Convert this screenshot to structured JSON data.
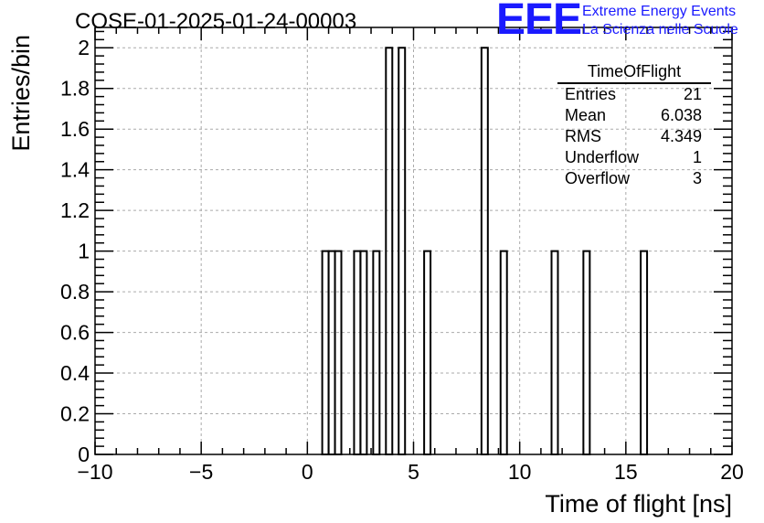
{
  "title": "COSE-01-2025-01-24-00003",
  "logo": {
    "mark": "EEE",
    "line1": "Extreme Energy Events",
    "line2": "La Scienza nelle Scuole"
  },
  "stats_box": {
    "name": "TimeOfFlight",
    "rows": [
      {
        "key": "Entries",
        "value": "21"
      },
      {
        "key": "Mean",
        "value": "6.038"
      },
      {
        "key": "RMS",
        "value": "4.349"
      },
      {
        "key": "Underflow",
        "value": "1"
      },
      {
        "key": "Overflow",
        "value": "3"
      }
    ]
  },
  "colors": {
    "line": "#000000",
    "grid": "#aaaaaa",
    "logo": "#1a1aff"
  },
  "chart_data": {
    "type": "bar",
    "histogram": true,
    "xlabel": "Time of flight [ns]",
    "ylabel": "Entries/bin",
    "xlim": [
      -10,
      20
    ],
    "ylim": [
      0,
      2.1
    ],
    "x_ticks": [
      -10,
      -5,
      0,
      5,
      10,
      15,
      20
    ],
    "x_tick_labels": [
      "−10",
      "−5",
      "0",
      "5",
      "10",
      "15",
      "20"
    ],
    "y_ticks": [
      0,
      0.2,
      0.4,
      0.6,
      0.8,
      1,
      1.2,
      1.4,
      1.6,
      1.8,
      2
    ],
    "y_tick_labels": [
      "0",
      "0.2",
      "0.4",
      "0.6",
      "0.8",
      "1",
      "1.2",
      "1.4",
      "1.6",
      "1.8",
      "2"
    ],
    "grid": true,
    "bin_width": 0.3,
    "bins": [
      {
        "x": 0.7,
        "count": 1
      },
      {
        "x": 1.0,
        "count": 1
      },
      {
        "x": 1.3,
        "count": 1
      },
      {
        "x": 2.2,
        "count": 1
      },
      {
        "x": 2.5,
        "count": 1
      },
      {
        "x": 3.1,
        "count": 1
      },
      {
        "x": 3.7,
        "count": 2
      },
      {
        "x": 4.3,
        "count": 2
      },
      {
        "x": 5.5,
        "count": 1
      },
      {
        "x": 8.2,
        "count": 2
      },
      {
        "x": 9.1,
        "count": 1
      },
      {
        "x": 11.5,
        "count": 1
      },
      {
        "x": 13.0,
        "count": 1
      },
      {
        "x": 15.7,
        "count": 1
      }
    ]
  }
}
